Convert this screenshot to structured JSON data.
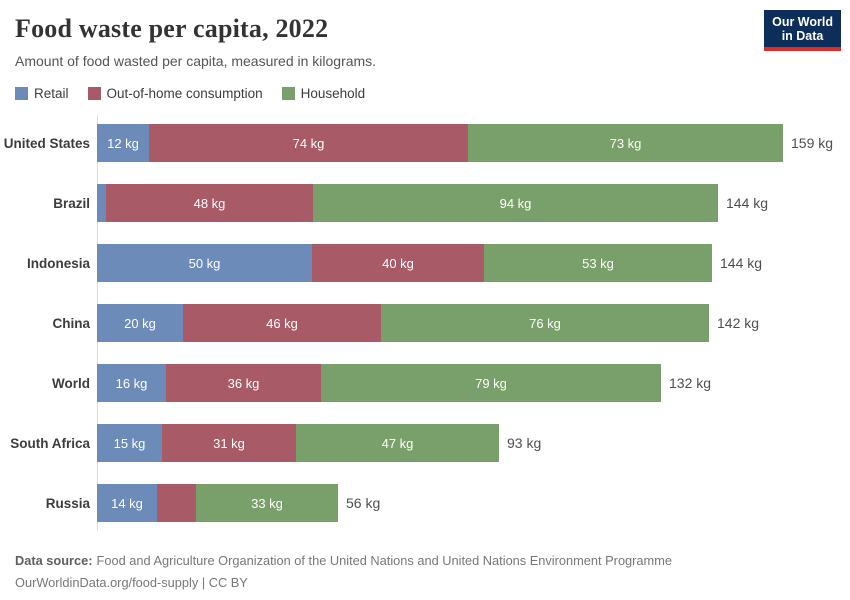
{
  "header": {
    "title": "Food waste per capita, 2022",
    "subtitle": "Amount of food wasted per capita, measured in kilograms.",
    "logo": {
      "line1": "Our World",
      "line2": "in Data"
    }
  },
  "colors": {
    "retail": "#6d8bb8",
    "out_of_home": "#a85a66",
    "household": "#79a06a",
    "logo_bg": "#0d2e5a",
    "logo_accent": "#dc2e27"
  },
  "legend": [
    {
      "label": "Retail",
      "series": "retail"
    },
    {
      "label": "Out-of-home consumption",
      "series": "out_of_home"
    },
    {
      "label": "Household",
      "series": "household"
    }
  ],
  "chart_data": {
    "type": "bar",
    "stacked": true,
    "orientation": "horizontal",
    "unit": "kg",
    "x_range_kg": [
      0,
      160
    ],
    "grid": false,
    "legend_position": "top",
    "series_names": [
      "Retail",
      "Out-of-home consumption",
      "Household"
    ],
    "series_keys": [
      "retail",
      "out_of_home",
      "household"
    ],
    "categories": [
      "United States",
      "Brazil",
      "Indonesia",
      "China",
      "World",
      "South Africa",
      "Russia"
    ],
    "rows": [
      {
        "entity": "United States",
        "values": [
          12,
          74,
          73
        ],
        "segment_labels": [
          "12 kg",
          "74 kg",
          "73 kg"
        ],
        "total": 159,
        "total_label": "159 kg"
      },
      {
        "entity": "Brazil",
        "values": [
          2,
          48,
          94
        ],
        "segment_labels": [
          null,
          "48 kg",
          "94 kg"
        ],
        "total": 144,
        "total_label": "144 kg"
      },
      {
        "entity": "Indonesia",
        "values": [
          50,
          40,
          53
        ],
        "segment_labels": [
          "50 kg",
          "40 kg",
          "53 kg"
        ],
        "total": 144,
        "total_label": "144 kg"
      },
      {
        "entity": "China",
        "values": [
          20,
          46,
          76
        ],
        "segment_labels": [
          "20 kg",
          "46 kg",
          "76 kg"
        ],
        "total": 142,
        "total_label": "142 kg"
      },
      {
        "entity": "World",
        "values": [
          16,
          36,
          79
        ],
        "segment_labels": [
          "16 kg",
          "36 kg",
          "79 kg"
        ],
        "total": 132,
        "total_label": "132 kg"
      },
      {
        "entity": "South Africa",
        "values": [
          15,
          31,
          47
        ],
        "segment_labels": [
          "15 kg",
          "31 kg",
          "47 kg"
        ],
        "total": 93,
        "total_label": "93 kg"
      },
      {
        "entity": "Russia",
        "values": [
          14,
          9,
          33
        ],
        "segment_labels": [
          "14 kg",
          null,
          "33 kg"
        ],
        "total": 56,
        "total_label": "56 kg"
      }
    ]
  },
  "footer": {
    "source_label": "Data source:",
    "source_text": "Food and Agriculture Organization of the United Nations and United Nations Environment Programme",
    "citation_line": "OurWorldinData.org/food-supply | CC BY"
  }
}
